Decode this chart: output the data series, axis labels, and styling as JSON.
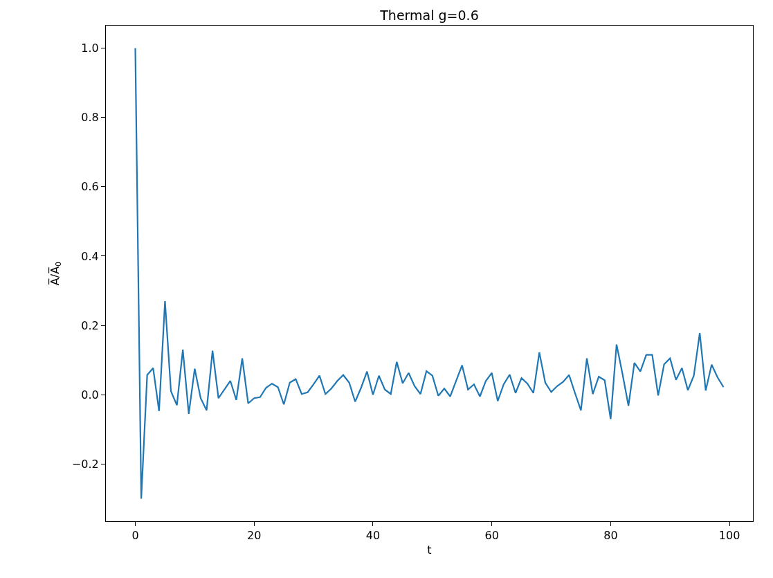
{
  "chart_data": {
    "type": "line",
    "title": "Thermal g=0.6",
    "xlabel": "t",
    "ylabel": "A̅/A̅$_{0}$",
    "x": [
      0,
      1,
      2,
      3,
      4,
      5,
      6,
      7,
      8,
      9,
      10,
      11,
      12,
      13,
      14,
      15,
      16,
      17,
      18,
      19,
      20,
      21,
      22,
      23,
      24,
      25,
      26,
      27,
      28,
      29,
      30,
      31,
      32,
      33,
      34,
      35,
      36,
      37,
      38,
      39,
      40,
      41,
      42,
      43,
      44,
      45,
      46,
      47,
      48,
      49,
      50,
      51,
      52,
      53,
      54,
      55,
      56,
      57,
      58,
      59,
      60,
      61,
      62,
      63,
      64,
      65,
      66,
      67,
      68,
      69,
      70,
      71,
      72,
      73,
      74,
      75,
      76,
      77,
      78,
      79,
      80,
      81,
      82,
      83,
      84,
      85,
      86,
      87,
      88,
      89,
      90,
      91,
      92,
      93,
      94,
      95,
      96,
      97,
      98,
      99
    ],
    "series": [
      {
        "color": "#1f77b4",
        "values": [
          1.0,
          -0.3,
          0.057,
          0.077,
          -0.047,
          0.27,
          0.01,
          -0.03,
          0.13,
          -0.055,
          0.075,
          -0.01,
          -0.045,
          0.127,
          -0.01,
          0.015,
          0.04,
          -0.015,
          0.105,
          -0.025,
          -0.01,
          -0.007,
          0.02,
          0.032,
          0.022,
          -0.028,
          0.035,
          0.045,
          0.002,
          0.007,
          0.03,
          0.055,
          0.002,
          0.018,
          0.04,
          0.057,
          0.035,
          -0.02,
          0.02,
          0.067,
          0.0,
          0.055,
          0.015,
          0.002,
          0.095,
          0.033,
          0.063,
          0.025,
          0.002,
          0.068,
          0.055,
          -0.003,
          0.018,
          -0.005,
          0.04,
          0.085,
          0.015,
          0.03,
          -0.005,
          0.04,
          0.063,
          -0.018,
          0.03,
          0.058,
          0.005,
          0.048,
          0.032,
          0.005,
          0.122,
          0.035,
          0.008,
          0.025,
          0.037,
          0.057,
          0.005,
          -0.045,
          0.105,
          0.002,
          0.052,
          0.042,
          -0.07,
          0.145,
          0.06,
          -0.032,
          0.092,
          0.067,
          0.115,
          0.115,
          -0.002,
          0.088,
          0.105,
          0.043,
          0.077,
          0.013,
          0.055,
          0.178,
          0.012,
          0.087,
          0.05,
          0.022
        ]
      }
    ],
    "xlim": [
      -4.95,
      103.95
    ],
    "xticks": [
      0,
      20,
      40,
      60,
      80,
      100
    ],
    "ylim": [
      -0.365,
      1.065
    ],
    "yticks": [
      {
        "value": -0.2,
        "label": "−0.2"
      },
      {
        "value": 0,
        "label": "0.0"
      },
      {
        "value": 0.2,
        "label": "0.2"
      },
      {
        "value": 0.4,
        "label": "0.4"
      },
      {
        "value": 0.6,
        "label": "0.6"
      },
      {
        "value": 0.8,
        "label": "0.8"
      },
      {
        "value": 1.0,
        "label": "1.0"
      }
    ],
    "marker": "none",
    "line_style": "solid"
  }
}
